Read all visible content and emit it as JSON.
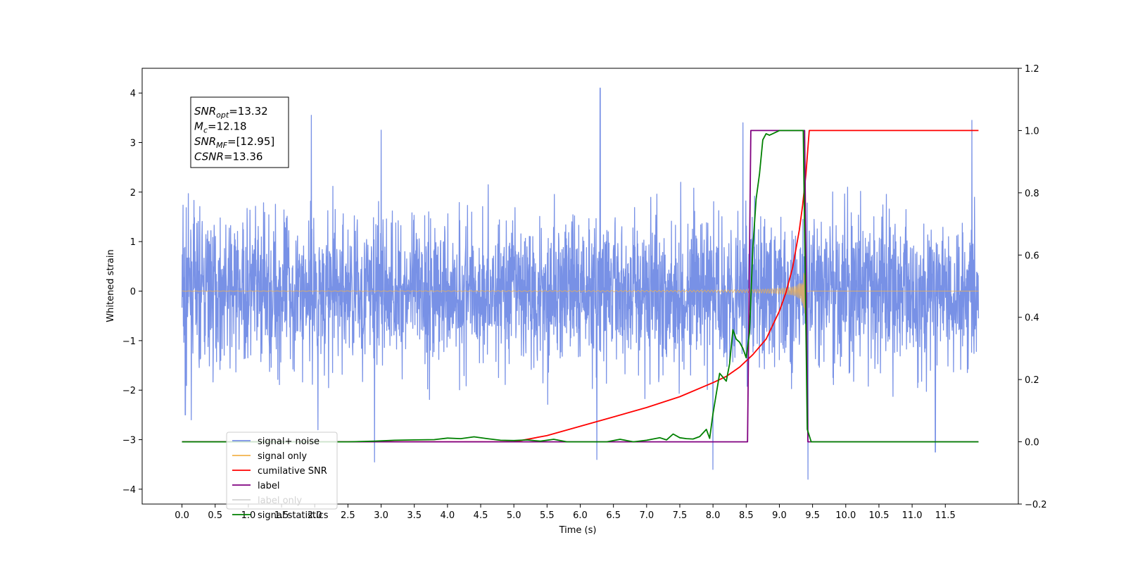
{
  "chart_data": {
    "type": "line",
    "title": "",
    "xlabel": "Time (s)",
    "ylabel": "Whitened strain",
    "xlim": [
      -0.6,
      12.6
    ],
    "ylim": [
      -4.3,
      4.5
    ],
    "y2lim": [
      -0.2,
      1.2
    ],
    "x_ticks": [
      0.0,
      0.5,
      1.0,
      1.5,
      2.0,
      2.5,
      3.0,
      3.5,
      4.0,
      4.5,
      5.0,
      5.5,
      6.0,
      6.5,
      7.0,
      7.5,
      8.0,
      8.5,
      9.0,
      9.5,
      10.0,
      10.5,
      11.0,
      11.5
    ],
    "x_tick_labels": [
      "0.0",
      "0.5",
      "1.0",
      "1.5",
      "2.0",
      "2.5",
      "3.0",
      "3.5",
      "4.0",
      "4.5",
      "5.0",
      "5.5",
      "6.0",
      "6.5",
      "7.0",
      "7.5",
      "8.0",
      "8.5",
      "9.0",
      "9.5",
      "10.0",
      "10.5",
      "11.0",
      "11.5"
    ],
    "y_ticks": [
      -4,
      -3,
      -2,
      -1,
      0,
      1,
      2,
      3,
      4
    ],
    "y_tick_labels": [
      "−4",
      "−3",
      "−2",
      "−1",
      "0",
      "1",
      "2",
      "3",
      "4"
    ],
    "y2_ticks": [
      -0.2,
      0.0,
      0.2,
      0.4,
      0.6,
      0.8,
      1.0,
      1.2
    ],
    "y2_tick_labels": [
      "−0.2",
      "0.0",
      "0.2",
      "0.4",
      "0.6",
      "0.8",
      "1.0",
      "1.2"
    ],
    "grid": false,
    "legend_position": "lower-left",
    "annotation": {
      "lines": [
        {
          "sym": "SNR",
          "sub": "opt",
          "value": "=13.32"
        },
        {
          "sym": "M",
          "sub": "c",
          "value": "=12.18"
        },
        {
          "sym": "SNR",
          "sub": "MF",
          "value": "=[12.95]"
        },
        {
          "sym": "CSNR",
          "sub": "",
          "value": "=13.36"
        }
      ]
    },
    "series": [
      {
        "name": "signal+ noise",
        "axis": "left",
        "color": "#7891e6",
        "style": "noise",
        "x_range": [
          0.0,
          12.0
        ],
        "envelope": 2.1,
        "peaks": [
          [
            1.95,
            3.55
          ],
          [
            2.05,
            -2.8
          ],
          [
            3.0,
            3.25
          ],
          [
            6.3,
            4.1
          ],
          [
            6.25,
            -3.4
          ],
          [
            8.45,
            3.4
          ],
          [
            8.0,
            -3.6
          ],
          [
            9.43,
            -3.8
          ],
          [
            11.9,
            3.45
          ],
          [
            2.9,
            -3.45
          ],
          [
            11.35,
            -3.25
          ],
          [
            0.05,
            -2.5
          ]
        ]
      },
      {
        "name": "signal only",
        "axis": "left",
        "color": "#f2b24c",
        "style": "chirp",
        "t_merge": 9.4,
        "x_range": [
          0.0,
          12.0
        ]
      },
      {
        "name": "cumilative SNR",
        "axis": "right",
        "color": "#ff0000",
        "x": [
          0.0,
          5.0,
          5.5,
          6.0,
          6.5,
          7.0,
          7.5,
          8.0,
          8.2,
          8.4,
          8.6,
          8.8,
          9.0,
          9.1,
          9.2,
          9.3,
          9.35,
          9.4,
          9.45,
          9.5,
          12.0
        ],
        "y": [
          0.0,
          0.0,
          0.02,
          0.05,
          0.08,
          0.11,
          0.145,
          0.19,
          0.21,
          0.24,
          0.28,
          0.33,
          0.42,
          0.48,
          0.56,
          0.68,
          0.76,
          0.86,
          1.0,
          1.0,
          1.0
        ]
      },
      {
        "name": "label",
        "axis": "right",
        "color": "#800080",
        "x": [
          0.0,
          8.52,
          8.57,
          9.38,
          9.43,
          12.0
        ],
        "y": [
          0.0,
          0.0,
          1.0,
          1.0,
          0.0,
          0.0
        ]
      },
      {
        "name": "label only",
        "hidden": true,
        "color": "#d3d3d3",
        "x": [],
        "y": []
      },
      {
        "name": "signal statistics",
        "axis": "right",
        "color": "#008000",
        "x": [
          0.0,
          2.5,
          2.9,
          3.2,
          3.5,
          3.8,
          4.0,
          4.2,
          4.4,
          4.6,
          4.8,
          5.0,
          5.2,
          5.4,
          5.6,
          5.8,
          6.0,
          6.4,
          6.6,
          6.8,
          7.0,
          7.2,
          7.3,
          7.4,
          7.5,
          7.6,
          7.7,
          7.8,
          7.9,
          7.95,
          8.0,
          8.1,
          8.2,
          8.25,
          8.3,
          8.35,
          8.4,
          8.45,
          8.5,
          8.55,
          8.6,
          8.65,
          8.7,
          8.75,
          8.8,
          8.85,
          8.9,
          9.0,
          9.1,
          9.2,
          9.36,
          9.42,
          9.48,
          12.0
        ],
        "y": [
          0.0,
          0.0,
          0.002,
          0.005,
          0.006,
          0.007,
          0.012,
          0.01,
          0.016,
          0.01,
          0.005,
          0.004,
          0.006,
          0.002,
          0.008,
          0.0,
          0.0,
          0.0,
          0.008,
          0.0,
          0.005,
          0.013,
          0.006,
          0.025,
          0.013,
          0.01,
          0.009,
          0.017,
          0.04,
          0.011,
          0.09,
          0.22,
          0.195,
          0.25,
          0.36,
          0.33,
          0.32,
          0.3,
          0.27,
          0.35,
          0.62,
          0.78,
          0.86,
          0.97,
          0.99,
          0.985,
          0.99,
          1.0,
          1.0,
          1.0,
          1.0,
          0.04,
          0.0,
          0.0
        ]
      }
    ]
  }
}
